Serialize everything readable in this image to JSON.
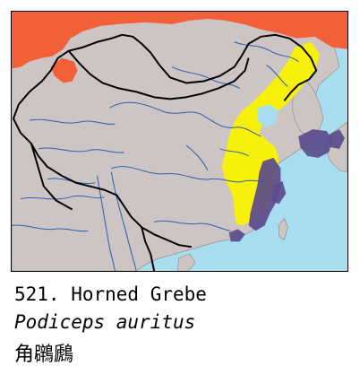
{
  "map": {
    "colors": {
      "sea": "#a8dcef",
      "land": "#ccc5c4",
      "breeding_range": "#f2603a",
      "migration_range": "#f7f00b",
      "wintering_range": "#5b4b8c",
      "rivers": "#2b5fae",
      "borders": "#000000"
    },
    "legend_ranges": [
      "breeding_range",
      "migration_range",
      "wintering_range"
    ]
  },
  "caption": {
    "number_name": "521. Horned Grebe",
    "scientific_name": "Podiceps auritus",
    "chinese_name": "角鸊鷉"
  }
}
